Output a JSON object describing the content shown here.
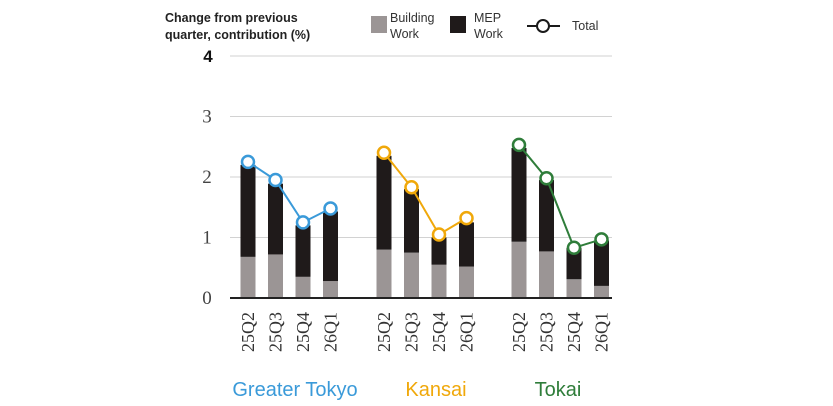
{
  "chart_data": {
    "type": "bar",
    "ylabel": "Change from previous quarter, contribution (%)",
    "ylabel_lines": [
      "Change from previous",
      "quarter, contribution (%)"
    ],
    "ylim": [
      0,
      4
    ],
    "yticks": [
      "0",
      "1",
      "2",
      "3",
      "4"
    ],
    "grid": "horizontal",
    "legend_position": "top",
    "legend": [
      {
        "key": "building",
        "lines": [
          "Building",
          "Work"
        ],
        "name": "Building Work",
        "kind": "bar",
        "color": "#9b9595"
      },
      {
        "key": "mep",
        "lines": [
          "MEP",
          "Work"
        ],
        "name": "MEP Work",
        "kind": "bar",
        "color": "#1f1a1a"
      },
      {
        "key": "total",
        "lines": [
          "Total"
        ],
        "name": "Total",
        "kind": "line",
        "color": "#1a1a1a"
      }
    ],
    "groups": [
      {
        "name": "Greater Tokyo",
        "color": "#3a9ad9",
        "categories": [
          "25Q2",
          "25Q3",
          "25Q4",
          "26Q1"
        ],
        "series": [
          {
            "name": "Building Work",
            "values": [
              0.68,
              0.72,
              0.35,
              0.28
            ]
          },
          {
            "name": "MEP Work",
            "values": [
              1.52,
              1.17,
              0.85,
              1.15
            ]
          },
          {
            "name": "Total",
            "values": [
              2.25,
              1.95,
              1.25,
              1.48
            ]
          }
        ]
      },
      {
        "name": "Kansai",
        "color": "#f0a80a",
        "categories": [
          "25Q2",
          "25Q3",
          "25Q4",
          "26Q1"
        ],
        "series": [
          {
            "name": "Building Work",
            "values": [
              0.8,
              0.75,
              0.55,
              0.52
            ]
          },
          {
            "name": "MEP Work",
            "values": [
              1.55,
              1.05,
              0.45,
              0.73
            ]
          },
          {
            "name": "Total",
            "values": [
              2.4,
              1.83,
              1.05,
              1.32
            ]
          }
        ]
      },
      {
        "name": "Tokai",
        "color": "#2f7d3a",
        "categories": [
          "25Q2",
          "25Q3",
          "25Q4",
          "26Q1"
        ],
        "series": [
          {
            "name": "Building Work",
            "values": [
              0.93,
              0.77,
              0.31,
              0.2
            ]
          },
          {
            "name": "MEP Work",
            "values": [
              1.55,
              1.18,
              0.52,
              0.75
            ]
          },
          {
            "name": "Total",
            "values": [
              2.53,
              1.98,
              0.83,
              0.97
            ]
          }
        ]
      }
    ]
  }
}
